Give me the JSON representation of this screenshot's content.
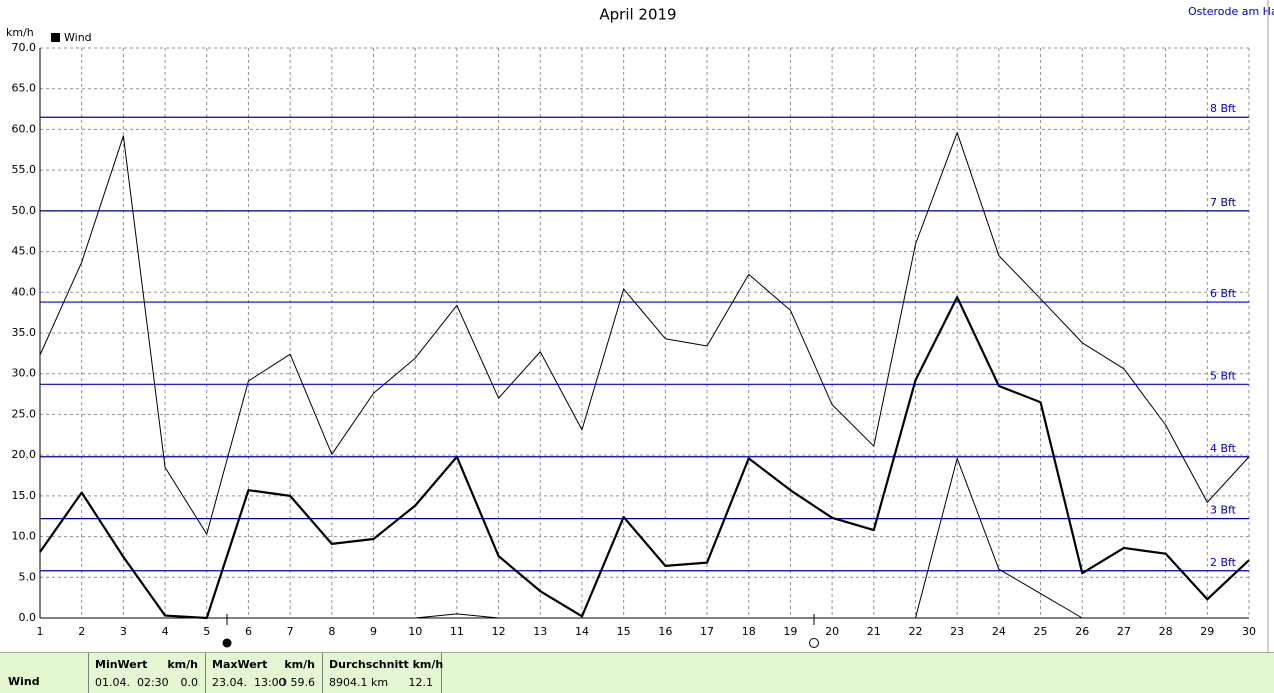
{
  "chart_data": {
    "type": "line",
    "title": "April 2019",
    "location": "Osterode am Harz",
    "ylabel": "km/h",
    "legend": "Wind",
    "legend_color": "#000000",
    "x": [
      1,
      2,
      3,
      4,
      5,
      6,
      7,
      8,
      9,
      10,
      11,
      12,
      13,
      14,
      15,
      16,
      17,
      18,
      19,
      20,
      21,
      22,
      23,
      24,
      25,
      26,
      27,
      28,
      29,
      30
    ],
    "xlim": [
      1,
      30
    ],
    "xticks": [
      1,
      2,
      3,
      4,
      5,
      6,
      7,
      8,
      9,
      10,
      11,
      12,
      13,
      14,
      15,
      16,
      17,
      18,
      19,
      20,
      21,
      22,
      23,
      24,
      25,
      26,
      27,
      28,
      29,
      30
    ],
    "ylim": [
      0,
      70
    ],
    "yticks": [
      {
        "value": 0,
        "label": "0.0"
      },
      {
        "value": 5,
        "label": "5.0"
      },
      {
        "value": 10,
        "label": "10.0"
      },
      {
        "value": 15,
        "label": "15.0"
      },
      {
        "value": 20,
        "label": "20.0"
      },
      {
        "value": 25,
        "label": "25.0"
      },
      {
        "value": 30,
        "label": "30.0"
      },
      {
        "value": 35,
        "label": "35.0"
      },
      {
        "value": 40,
        "label": "40.0"
      },
      {
        "value": 45,
        "label": "45.0"
      },
      {
        "value": 50,
        "label": "50.0"
      },
      {
        "value": 55,
        "label": "55.0"
      },
      {
        "value": 60,
        "label": "60.0"
      },
      {
        "value": 65,
        "label": "65.0"
      },
      {
        "value": 70,
        "label": "70.0"
      }
    ],
    "grid": true,
    "series": [
      {
        "color": "#000000",
        "line_width": 1,
        "values": [
          32.3,
          43.7,
          59.2,
          18.5,
          10.3,
          29.1,
          32.4,
          20.1,
          27.6,
          31.9,
          38.4,
          27.0,
          32.7,
          23.1,
          40.4,
          34.3,
          33.4,
          42.2,
          37.8,
          26.2,
          21.1,
          45.9,
          59.6,
          44.5,
          39.2,
          33.8,
          30.6,
          23.7,
          14.2,
          19.8
        ]
      },
      {
        "color": "#000000",
        "line_width": 2.2,
        "values": [
          8.1,
          15.4,
          7.5,
          0.3,
          0.0,
          15.7,
          15.0,
          9.1,
          9.7,
          13.8,
          19.8,
          7.6,
          3.3,
          0.2,
          12.4,
          6.4,
          6.8,
          19.6,
          15.7,
          12.3,
          10.8,
          29.2,
          39.4,
          28.5,
          26.5,
          5.5,
          8.6,
          7.9,
          2.3,
          7.1
        ]
      },
      {
        "color": "#000000",
        "line_width": 1,
        "values": [
          0,
          0,
          0,
          0,
          0,
          0,
          0,
          0,
          0,
          0,
          0.5,
          0,
          0,
          0,
          0,
          0,
          0,
          0,
          0,
          0,
          0,
          0,
          19.6,
          6.0,
          3.0,
          0,
          null,
          null,
          null,
          null
        ]
      }
    ],
    "reference_lines": [
      {
        "value": 5.8,
        "label": "2 Bft",
        "color": "#0000c8"
      },
      {
        "value": 12.2,
        "label": "3 Bft",
        "color": "#0000a0"
      },
      {
        "value": 19.8,
        "label": "4 Bft",
        "color": "#0000c8"
      },
      {
        "value": 28.7,
        "label": "5 Bft",
        "color": "#0000c8"
      },
      {
        "value": 38.8,
        "label": "6 Bft",
        "color": "#0000c8"
      },
      {
        "value": 50.0,
        "label": "7 Bft",
        "color": "#000080"
      },
      {
        "value": 61.5,
        "label": "8 Bft",
        "color": "#0000c8"
      }
    ]
  },
  "footer": {
    "label": "Wind",
    "stats": [
      {
        "header": "MinWert",
        "unit": "km/h",
        "date": "01.04.  02:30",
        "value": "0.0"
      },
      {
        "header": "MaxWert",
        "unit": "km/h",
        "date": "23.04.  13:00",
        "value": "O 59.6"
      },
      {
        "header": "Durchschnitt km/h",
        "date": "8904.1 km",
        "value": "12.1"
      }
    ]
  }
}
